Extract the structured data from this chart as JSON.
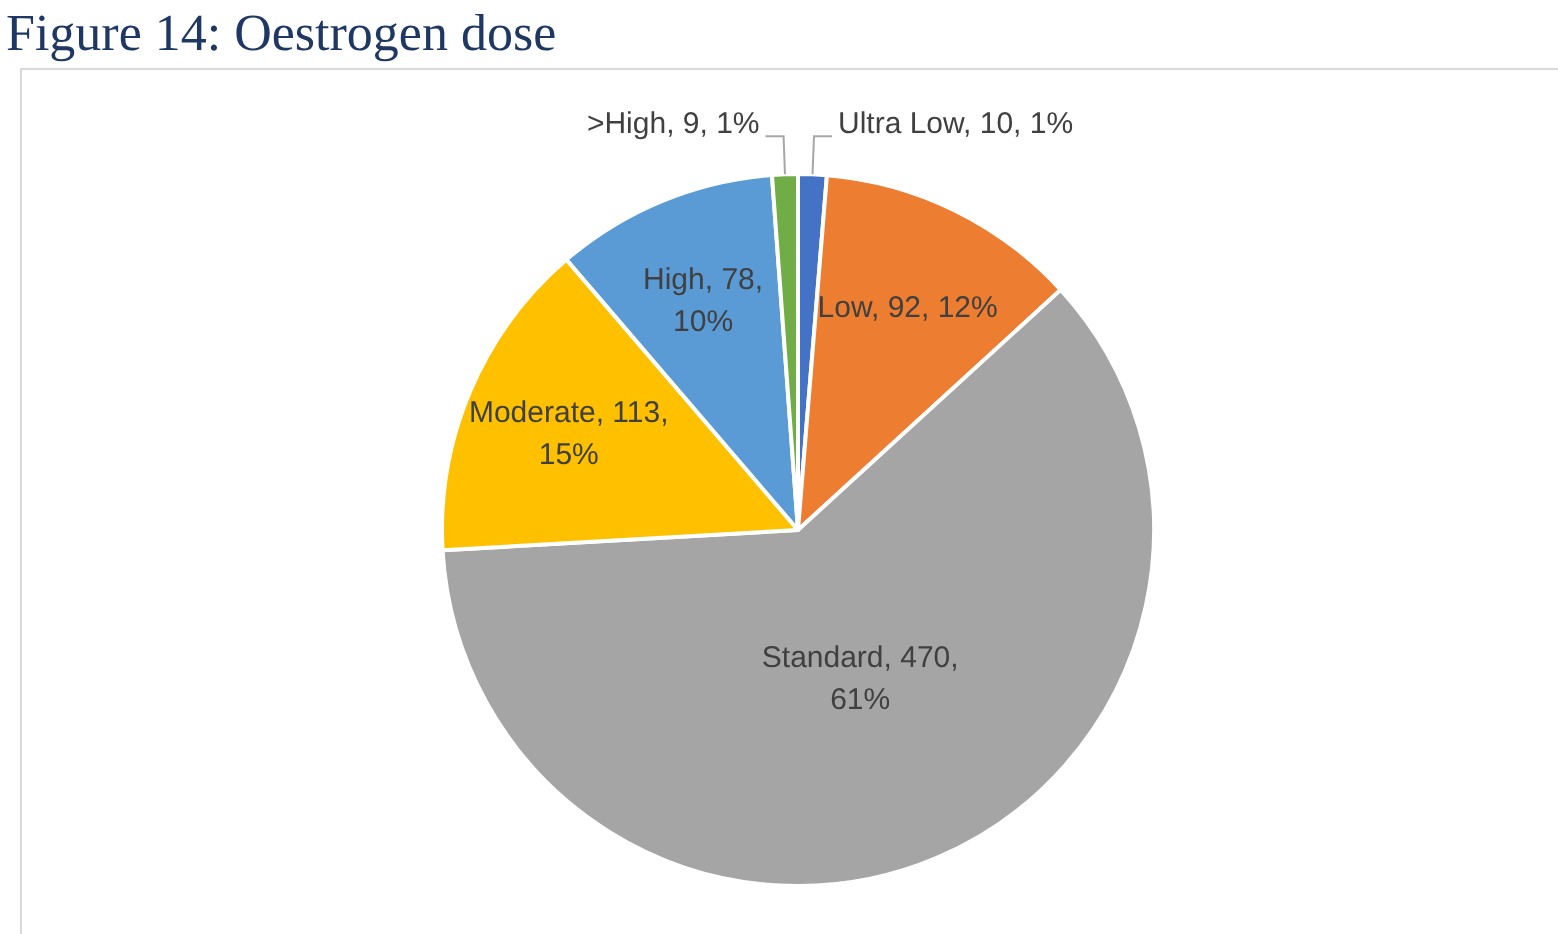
{
  "chart_data": {
    "type": "pie",
    "title": "Figure 14: Oestrogen dose",
    "categories": [
      "Ultra Low",
      "Low",
      "Standard",
      "Moderate",
      "High",
      ">High"
    ],
    "values": [
      10,
      92,
      470,
      113,
      78,
      9
    ],
    "colors": [
      "#4472c4",
      "#ed7d31",
      "#a5a5a5",
      "#ffc000",
      "#5b9bd5",
      "#70ad47"
    ],
    "value_labels": [
      "10, 1%",
      "92, 12%",
      "470, 61%",
      "113, 15%",
      "78, 10%",
      "9, 1%"
    ]
  }
}
